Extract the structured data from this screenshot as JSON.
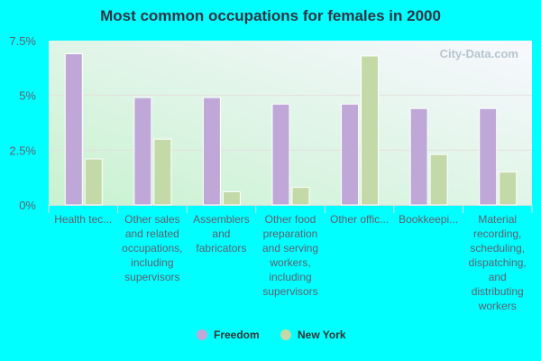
{
  "chart_data": {
    "type": "bar",
    "title": "Most common occupations for females in 2000",
    "categories": [
      "Health tec...",
      "Other sales and related occupations, including supervisors",
      "Assemblers and fabricators",
      "Other food preparation and serving workers, including supervisors",
      "Other offic...",
      "Bookkeepi...",
      "Material recording, scheduling, dispatching, and distributing workers"
    ],
    "series": [
      {
        "name": "Freedom",
        "color": "#bfa8d8",
        "values": [
          6.9,
          4.9,
          4.9,
          4.6,
          4.6,
          4.4,
          4.4
        ]
      },
      {
        "name": "New York",
        "color": "#c4d9a8",
        "values": [
          2.1,
          3.0,
          0.6,
          0.8,
          6.8,
          2.3,
          1.5
        ]
      }
    ],
    "ylim": [
      0,
      7.5
    ],
    "yticks": [
      "0%",
      "2.5%",
      "5%",
      "7.5%"
    ],
    "ytick_values": [
      0,
      2.5,
      5,
      7.5
    ],
    "grid": true,
    "legend": "bottom",
    "watermark": "City-Data.com"
  }
}
